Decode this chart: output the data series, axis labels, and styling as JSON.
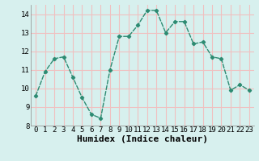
{
  "x": [
    0,
    1,
    2,
    3,
    4,
    5,
    6,
    7,
    8,
    9,
    10,
    11,
    12,
    13,
    14,
    15,
    16,
    17,
    18,
    19,
    20,
    21,
    22,
    23
  ],
  "y": [
    9.6,
    10.9,
    11.6,
    11.7,
    10.6,
    9.5,
    8.6,
    8.4,
    11.0,
    12.8,
    12.8,
    13.4,
    14.2,
    14.2,
    13.0,
    13.6,
    13.6,
    12.4,
    12.5,
    11.7,
    11.6,
    9.9,
    10.2,
    9.9
  ],
  "xlabel": "Humidex (Indice chaleur)",
  "ylim": [
    8,
    14.5
  ],
  "xlim": [
    -0.5,
    23.5
  ],
  "yticks": [
    8,
    9,
    10,
    11,
    12,
    13,
    14
  ],
  "xticks": [
    0,
    1,
    2,
    3,
    4,
    5,
    6,
    7,
    8,
    9,
    10,
    11,
    12,
    13,
    14,
    15,
    16,
    17,
    18,
    19,
    20,
    21,
    22,
    23
  ],
  "line_color": "#2d8b72",
  "marker_color": "#2d8b72",
  "bg_color": "#d7f0ee",
  "grid_color": "#f0c0c0",
  "tick_label_fontsize": 6.5,
  "xlabel_fontsize": 8
}
